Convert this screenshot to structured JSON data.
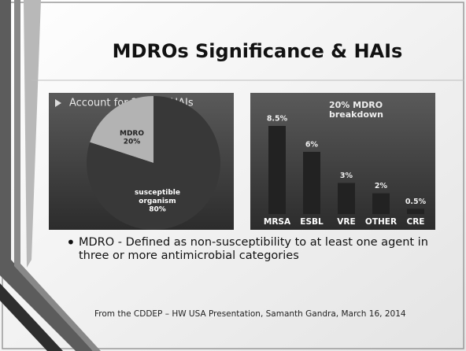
{
  "title": "MDROs Significance & HAIs",
  "chart_data": [
    {
      "type": "pie",
      "title": "Account for 20% of HAIs",
      "categories": [
        "MDRO",
        "susceptible organism"
      ],
      "values": [
        20,
        80
      ],
      "value_labels": [
        "20%",
        "80%"
      ],
      "colors": [
        "#b3b3b3",
        "#383838"
      ]
    },
    {
      "type": "bar",
      "title": "20% MDRO breakdown",
      "categories": [
        "MRSA",
        "ESBL",
        "VRE",
        "OTHER",
        "CRE"
      ],
      "values": [
        8.5,
        6,
        3,
        2,
        0.5
      ],
      "value_labels": [
        "8.5%",
        "6%",
        "3%",
        "2%",
        "0.5%"
      ],
      "color": "#222222"
    }
  ],
  "bullet": "MDRO - Defined as non-susceptibility to at least one agent in three or more antimicrobial categories",
  "footer": "From the CDDEP – HW USA Presentation, Samanth Gandra,  March 16, 2014"
}
